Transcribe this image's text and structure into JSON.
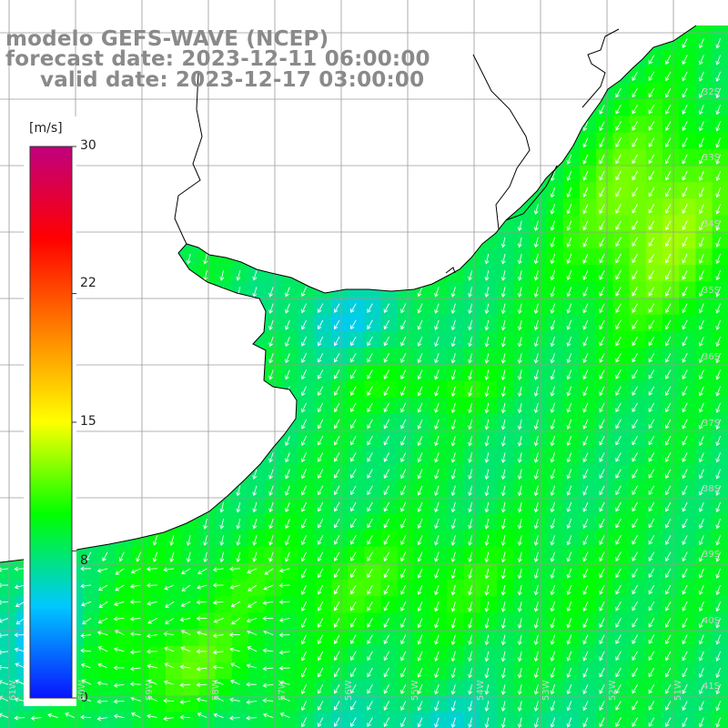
{
  "title": {
    "line1": "modelo GEFS-WAVE (NCEP)",
    "line2": "forecast date: 2023-12-11 06:00:00",
    "line3": "valid date: 2023-12-17 03:00:00"
  },
  "colorbar": {
    "unit": "[m/s]",
    "ticks": [
      {
        "label": "30",
        "value": 30
      },
      {
        "label": "22",
        "value": 22
      },
      {
        "label": "15",
        "value": 15
      },
      {
        "label": "8",
        "value": 8
      },
      {
        "label": "0",
        "value": 0
      }
    ],
    "range": [
      0,
      30
    ],
    "colors": [
      "#0a14ff",
      "#00c8ff",
      "#00ff00",
      "#ffff00",
      "#ff8000",
      "#ff0000",
      "#c0007e"
    ]
  },
  "map": {
    "variable": "wind speed with direction arrows",
    "land_color": "#ffffff",
    "coastline_color": "#000000",
    "grid_color": "#9a9a9a",
    "arrow_color": "#ffffff",
    "latitude_labels": [
      "32S",
      "33S",
      "34S",
      "35S",
      "36S",
      "37S",
      "38S",
      "39S",
      "40S",
      "41S"
    ],
    "longitude_labels": [
      "61W",
      "60W",
      "59W",
      "58W",
      "57W",
      "56W",
      "55W",
      "54W",
      "53W",
      "52W",
      "51W"
    ]
  }
}
